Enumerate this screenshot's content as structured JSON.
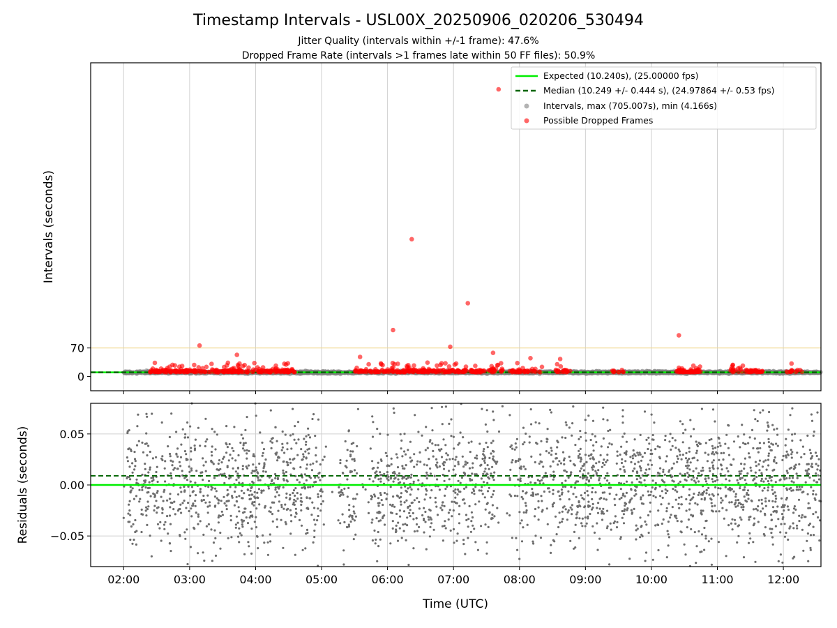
{
  "chart_data": {
    "type": "scatter",
    "title": "Timestamp Intervals - USL00X_20250906_020206_530494",
    "subtitle_lines": [
      "Jitter Quality (intervals within +/-1 frame): 47.6%",
      "Dropped Frame Rate (intervals >1 frames late within 50 FF files): 50.9%"
    ],
    "xlabel": "Time (UTC)",
    "x_ticks": [
      "02:00",
      "03:00",
      "04:00",
      "05:00",
      "06:00",
      "07:00",
      "08:00",
      "09:00",
      "10:00",
      "11:00",
      "12:00"
    ],
    "x_range_hours": [
      1.5,
      12.57
    ],
    "top_panel": {
      "ylabel": "Intervals (seconds)",
      "y_ticks": [
        0,
        70
      ],
      "ylim": [
        -35,
        770
      ],
      "reference_line_y": 70,
      "expected_line_y": 10.24,
      "median_line_y": 10.249,
      "grid": "vertical",
      "legend_position": "top-right",
      "legend": [
        "Expected (10.240s), (25.00000 fps)",
        "Median (10.249 +/- 0.444 s), (24.97864 +/- 0.53 fps)",
        "Intervals, max (705.007s), min (4.166s)",
        "Possible Dropped Frames"
      ],
      "notable_dropped_points": [
        {
          "t": "07:41",
          "interval": 705
        },
        {
          "t": "06:22",
          "interval": 337
        },
        {
          "t": "07:13",
          "interval": 180
        },
        {
          "t": "06:05",
          "interval": 114
        },
        {
          "t": "10:25",
          "interval": 101
        },
        {
          "t": "06:57",
          "interval": 73
        },
        {
          "t": "03:09",
          "interval": 76
        },
        {
          "t": "07:36",
          "interval": 58
        },
        {
          "t": "03:43",
          "interval": 53
        },
        {
          "t": "05:35",
          "interval": 48
        },
        {
          "t": "08:10",
          "interval": 45
        },
        {
          "t": "08:37",
          "interval": 43
        }
      ]
    },
    "bottom_panel": {
      "ylabel": "Residuals (seconds)",
      "y_ticks": [
        "0.05",
        "0.00",
        "−0.05"
      ],
      "ylim": [
        -0.08,
        0.08
      ],
      "expected_line_y": 0.0,
      "median_line_y": 0.009,
      "grid": "both"
    },
    "colors": {
      "expected": "#00ee00",
      "median": "#006400",
      "intervals": "#808080",
      "dropped": "#ff0000",
      "reference": "#f0d890",
      "grid": "#d0d0d0"
    }
  }
}
